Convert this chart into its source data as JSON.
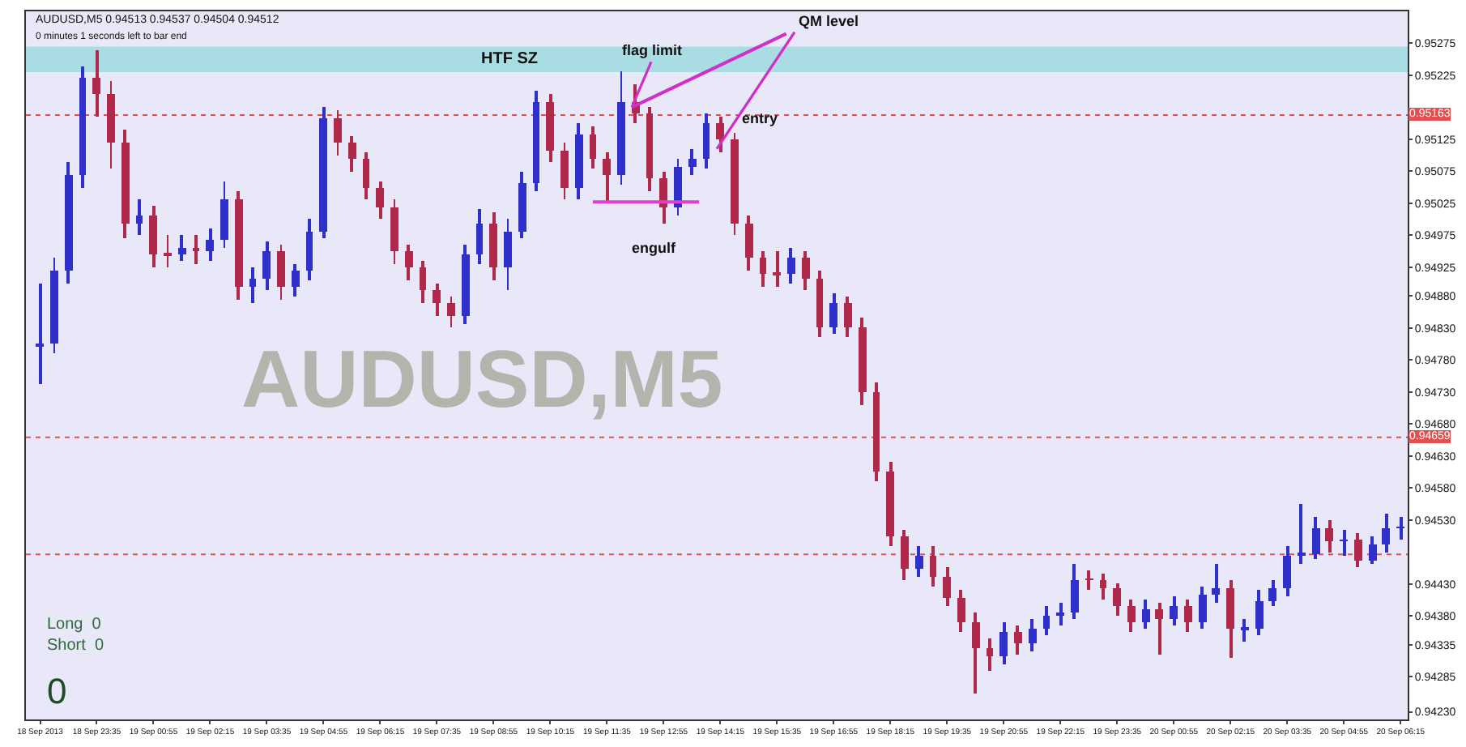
{
  "chart_data": {
    "type": "candlestick",
    "x": [
      "2013-09-18T22:15",
      "2013-09-18T22:35",
      "2013-09-18T22:55",
      "2013-09-18T23:15",
      "2013-09-18T23:35",
      "2013-09-18T23:55",
      "2013-09-19T00:15",
      "2013-09-19T00:35",
      "2013-09-19T00:55",
      "2013-09-19T01:15",
      "2013-09-19T01:35",
      "2013-09-19T01:55",
      "2013-09-19T02:15",
      "2013-09-19T02:35",
      "2013-09-19T02:55",
      "2013-09-19T03:15",
      "2013-09-19T03:35",
      "2013-09-19T03:55",
      "2013-09-19T04:15",
      "2013-09-19T04:35",
      "2013-09-19T04:55",
      "2013-09-19T05:15",
      "2013-09-19T05:35",
      "2013-09-19T05:55",
      "2013-09-19T06:15",
      "2013-09-19T06:35",
      "2013-09-19T06:55",
      "2013-09-19T07:15",
      "2013-09-19T07:35",
      "2013-09-19T07:55",
      "2013-09-19T08:15",
      "2013-09-19T08:35",
      "2013-09-19T08:55",
      "2013-09-19T09:15",
      "2013-09-19T09:35",
      "2013-09-19T09:55",
      "2013-09-19T10:15",
      "2013-09-19T10:35",
      "2013-09-19T10:55",
      "2013-09-19T11:15",
      "2013-09-19T11:35",
      "2013-09-19T11:55",
      "2013-09-19T12:15",
      "2013-09-19T12:35",
      "2013-09-19T12:55",
      "2013-09-19T13:15",
      "2013-09-19T13:35",
      "2013-09-19T13:55",
      "2013-09-19T14:15",
      "2013-09-19T14:35",
      "2013-09-19T14:55",
      "2013-09-19T15:15",
      "2013-09-19T15:35",
      "2013-09-19T15:55",
      "2013-09-19T16:15",
      "2013-09-19T16:35",
      "2013-09-19T16:55",
      "2013-09-19T17:15",
      "2013-09-19T17:35",
      "2013-09-19T17:55",
      "2013-09-19T18:15",
      "2013-09-19T18:35",
      "2013-09-19T18:55",
      "2013-09-19T19:15",
      "2013-09-19T19:35",
      "2013-09-19T19:55",
      "2013-09-19T20:15",
      "2013-09-19T20:35",
      "2013-09-19T20:55",
      "2013-09-19T21:15",
      "2013-09-19T21:35",
      "2013-09-19T21:55",
      "2013-09-19T22:15",
      "2013-09-19T22:35",
      "2013-09-19T22:55",
      "2013-09-19T23:15",
      "2013-09-19T23:35",
      "2013-09-19T23:55",
      "2013-09-20T00:15",
      "2013-09-20T00:35",
      "2013-09-20T00:55",
      "2013-09-20T01:15",
      "2013-09-20T01:35",
      "2013-09-20T01:55",
      "2013-09-20T02:15",
      "2013-09-20T02:35",
      "2013-09-20T02:55",
      "2013-09-20T03:15",
      "2013-09-20T03:35",
      "2013-09-20T03:55",
      "2013-09-20T04:15",
      "2013-09-20T04:35",
      "2013-09-20T04:55",
      "2013-09-20T05:15",
      "2013-09-20T05:35",
      "2013-09-20T05:55",
      "2013-09-20T06:15"
    ],
    "ohlc": [
      [
        0.948,
        0.949,
        0.94743,
        0.94806
      ],
      [
        0.94806,
        0.9494,
        0.9479,
        0.94919
      ],
      [
        0.94919,
        0.9509,
        0.949,
        0.95069
      ],
      [
        0.95069,
        0.9524,
        0.9505,
        0.9522
      ],
      [
        0.9522,
        0.95265,
        0.9516,
        0.95195
      ],
      [
        0.95195,
        0.95215,
        0.9508,
        0.95119
      ],
      [
        0.95119,
        0.9514,
        0.9497,
        0.94994
      ],
      [
        0.94994,
        0.9503,
        0.94975,
        0.95006
      ],
      [
        0.95006,
        0.9502,
        0.94925,
        0.94944
      ],
      [
        0.94944,
        0.94975,
        0.94925,
        0.94944
      ],
      [
        0.94944,
        0.94975,
        0.94935,
        0.94956
      ],
      [
        0.94956,
        0.94975,
        0.9493,
        0.94949
      ],
      [
        0.94949,
        0.94985,
        0.94935,
        0.94969
      ],
      [
        0.94969,
        0.9506,
        0.94955,
        0.95032
      ],
      [
        0.95032,
        0.95045,
        0.94875,
        0.94894
      ],
      [
        0.94894,
        0.94925,
        0.9487,
        0.94906
      ],
      [
        0.94906,
        0.94965,
        0.9489,
        0.94949
      ],
      [
        0.94949,
        0.9496,
        0.94875,
        0.94894
      ],
      [
        0.94894,
        0.9493,
        0.9488,
        0.94919
      ],
      [
        0.94919,
        0.95,
        0.94905,
        0.94981
      ],
      [
        0.94981,
        0.95175,
        0.9497,
        0.95157
      ],
      [
        0.95157,
        0.9517,
        0.951,
        0.95119
      ],
      [
        0.95119,
        0.9513,
        0.95075,
        0.95094
      ],
      [
        0.95094,
        0.95105,
        0.9503,
        0.95049
      ],
      [
        0.95049,
        0.9506,
        0.95,
        0.95019
      ],
      [
        0.95019,
        0.9503,
        0.9493,
        0.94949
      ],
      [
        0.94949,
        0.9496,
        0.94905,
        0.94924
      ],
      [
        0.94924,
        0.94935,
        0.9487,
        0.94889
      ],
      [
        0.94889,
        0.949,
        0.9485,
        0.94868
      ],
      [
        0.94868,
        0.9488,
        0.94831,
        0.94848
      ],
      [
        0.94848,
        0.9496,
        0.94835,
        0.94944
      ],
      [
        0.94944,
        0.95015,
        0.9493,
        0.94994
      ],
      [
        0.94994,
        0.9501,
        0.94905,
        0.94924
      ],
      [
        0.94924,
        0.95,
        0.9489,
        0.94981
      ],
      [
        0.94981,
        0.95075,
        0.9497,
        0.95057
      ],
      [
        0.95057,
        0.95202,
        0.95045,
        0.95182
      ],
      [
        0.95182,
        0.95195,
        0.9509,
        0.95107
      ],
      [
        0.95107,
        0.9512,
        0.9503,
        0.95049
      ],
      [
        0.95049,
        0.9515,
        0.9503,
        0.95132
      ],
      [
        0.95132,
        0.95145,
        0.9508,
        0.95094
      ],
      [
        0.95094,
        0.95105,
        0.95027,
        0.95069
      ],
      [
        0.95069,
        0.95232,
        0.95055,
        0.95182
      ],
      [
        0.95182,
        0.9521,
        0.9515,
        0.95165
      ],
      [
        0.95165,
        0.95175,
        0.95045,
        0.95064
      ],
      [
        0.95064,
        0.95075,
        0.94994,
        0.95019
      ],
      [
        0.95019,
        0.95095,
        0.95005,
        0.95082
      ],
      [
        0.95082,
        0.9511,
        0.9507,
        0.95094
      ],
      [
        0.95094,
        0.95165,
        0.9508,
        0.9515
      ],
      [
        0.9515,
        0.9516,
        0.95105,
        0.95124
      ],
      [
        0.95124,
        0.95135,
        0.94975,
        0.94994
      ],
      [
        0.94994,
        0.95005,
        0.9492,
        0.94939
      ],
      [
        0.94939,
        0.9495,
        0.94895,
        0.94914
      ],
      [
        0.94914,
        0.9495,
        0.94895,
        0.94914
      ],
      [
        0.94914,
        0.94955,
        0.949,
        0.94939
      ],
      [
        0.94939,
        0.9495,
        0.9489,
        0.94906
      ],
      [
        0.94906,
        0.9492,
        0.94815,
        0.94831
      ],
      [
        0.94831,
        0.94885,
        0.9482,
        0.94868
      ],
      [
        0.94868,
        0.9488,
        0.94815,
        0.94831
      ],
      [
        0.94831,
        0.94845,
        0.9471,
        0.9473
      ],
      [
        0.9473,
        0.94745,
        0.9459,
        0.94605
      ],
      [
        0.94605,
        0.9462,
        0.9449,
        0.94504
      ],
      [
        0.94504,
        0.94515,
        0.94435,
        0.94454
      ],
      [
        0.94454,
        0.9449,
        0.9444,
        0.94474
      ],
      [
        0.94474,
        0.9449,
        0.94425,
        0.94442
      ],
      [
        0.94442,
        0.94455,
        0.94395,
        0.94409
      ],
      [
        0.94409,
        0.9442,
        0.94355,
        0.94371
      ],
      [
        0.94371,
        0.94385,
        0.94258,
        0.94329
      ],
      [
        0.94329,
        0.94345,
        0.94295,
        0.94316
      ],
      [
        0.94316,
        0.9437,
        0.94305,
        0.94354
      ],
      [
        0.94354,
        0.94365,
        0.9432,
        0.94336
      ],
      [
        0.94336,
        0.94375,
        0.94325,
        0.94361
      ],
      [
        0.94361,
        0.94395,
        0.9435,
        0.94379
      ],
      [
        0.94379,
        0.944,
        0.94365,
        0.94386
      ],
      [
        0.94386,
        0.94462,
        0.94375,
        0.94437
      ],
      [
        0.94437,
        0.9445,
        0.9442,
        0.94437
      ],
      [
        0.94437,
        0.94445,
        0.94405,
        0.94422
      ],
      [
        0.94422,
        0.9443,
        0.9438,
        0.94396
      ],
      [
        0.94396,
        0.94405,
        0.94355,
        0.94371
      ],
      [
        0.94371,
        0.94405,
        0.9436,
        0.94391
      ],
      [
        0.94391,
        0.944,
        0.9432,
        0.94376
      ],
      [
        0.94376,
        0.9441,
        0.94365,
        0.94396
      ],
      [
        0.94396,
        0.94405,
        0.94355,
        0.94371
      ],
      [
        0.94371,
        0.94425,
        0.9436,
        0.94412
      ],
      [
        0.94412,
        0.9446,
        0.944,
        0.94422
      ],
      [
        0.94422,
        0.94435,
        0.94315,
        0.94359
      ],
      [
        0.94359,
        0.94375,
        0.9434,
        0.94361
      ],
      [
        0.94361,
        0.9442,
        0.9435,
        0.94404
      ],
      [
        0.94404,
        0.94435,
        0.94395,
        0.94422
      ],
      [
        0.94422,
        0.9449,
        0.9441,
        0.94474
      ],
      [
        0.94474,
        0.94555,
        0.9446,
        0.94477
      ],
      [
        0.94477,
        0.94535,
        0.9447,
        0.94517
      ],
      [
        0.94517,
        0.9453,
        0.9448,
        0.94497
      ],
      [
        0.94497,
        0.94515,
        0.94475,
        0.94499
      ],
      [
        0.94499,
        0.9451,
        0.94455,
        0.94467
      ],
      [
        0.94467,
        0.94505,
        0.9446,
        0.94492
      ],
      [
        0.94492,
        0.9454,
        0.9448,
        0.94517
      ],
      [
        0.94517,
        0.94535,
        0.945,
        0.94517
      ]
    ],
    "colors": [
      "#2f2fcc",
      "#2f2fcc",
      "#2f2fcc",
      "#2f2fcc",
      "#b0284a",
      "#b0284a",
      "#b0284a",
      "#2f2fcc",
      "#b0284a",
      "#b0284a",
      "#2f2fcc",
      "#b0284a",
      "#2f2fcc",
      "#2f2fcc",
      "#b0284a",
      "#2f2fcc",
      "#2f2fcc",
      "#b0284a",
      "#2f2fcc",
      "#2f2fcc",
      "#2f2fcc",
      "#b0284a",
      "#b0284a",
      "#b0284a",
      "#b0284a",
      "#b0284a",
      "#b0284a",
      "#b0284a",
      "#b0284a",
      "#b0284a",
      "#2f2fcc",
      "#2f2fcc",
      "#b0284a",
      "#2f2fcc",
      "#2f2fcc",
      "#2f2fcc",
      "#b0284a",
      "#b0284a",
      "#2f2fcc",
      "#b0284a",
      "#b0284a",
      "#2f2fcc",
      "#b0284a",
      "#b0284a",
      "#b0284a",
      "#2f2fcc",
      "#2f2fcc",
      "#2f2fcc",
      "#b0284a",
      "#b0284a",
      "#b0284a",
      "#b0284a",
      "#b0284a",
      "#2f2fcc",
      "#b0284a",
      "#b0284a",
      "#2f2fcc",
      "#b0284a",
      "#b0284a",
      "#b0284a",
      "#b0284a",
      "#b0284a",
      "#2f2fcc",
      "#b0284a",
      "#b0284a",
      "#b0284a",
      "#b0284a",
      "#b0284a",
      "#2f2fcc",
      "#b0284a",
      "#2f2fcc",
      "#2f2fcc",
      "#2f2fcc",
      "#2f2fcc",
      "#b0284a",
      "#b0284a",
      "#b0284a",
      "#b0284a",
      "#2f2fcc",
      "#b0284a",
      "#2f2fcc",
      "#b0284a",
      "#2f2fcc",
      "#2f2fcc",
      "#b0284a",
      "#2f2fcc",
      "#2f2fcc",
      "#2f2fcc",
      "#2f2fcc",
      "#2f2fcc",
      "#2f2fcc",
      "#b0284a",
      "#2f2fcc",
      "#b0284a",
      "#2f2fcc",
      "#2f2fcc",
      "#2f2fcc"
    ],
    "series": [
      {
        "type": "line",
        "color": "#e040c8",
        "x": [
          "2013-09-19T11:15",
          "2013-09-19T13:45"
        ],
        "values": [
          0.95027,
          0.95027
        ]
      },
      {
        "type": "line",
        "color": "#d030c8",
        "x": [
          "2013-09-19T12:10",
          "2013-09-19T15:48"
        ],
        "values": [
          0.95175,
          0.9529
        ]
      }
    ],
    "xlim": [
      "2013-09-18T21:55",
      "2013-09-20T06:25"
    ],
    "xticks": [
      {
        "value": "2013-09-18T22:15",
        "label": "18 Sep 2013"
      },
      {
        "value": "2013-09-18T23:35",
        "label": "18 Sep 23:35"
      },
      {
        "value": "2013-09-19T00:55",
        "label": "19 Sep 00:55"
      },
      {
        "value": "2013-09-19T02:15",
        "label": "19 Sep 02:15"
      },
      {
        "value": "2013-09-19T03:35",
        "label": "19 Sep 03:35"
      },
      {
        "value": "2013-09-19T04:55",
        "label": "19 Sep 04:55"
      },
      {
        "value": "2013-09-19T06:15",
        "label": "19 Sep 06:15"
      },
      {
        "value": "2013-09-19T07:35",
        "label": "19 Sep 07:35"
      },
      {
        "value": "2013-09-19T08:55",
        "label": "19 Sep 08:55"
      },
      {
        "value": "2013-09-19T10:15",
        "label": "19 Sep 10:15"
      },
      {
        "value": "2013-09-19T11:35",
        "label": "19 Sep 11:35"
      },
      {
        "value": "2013-09-19T12:55",
        "label": "19 Sep 12:55"
      },
      {
        "value": "2013-09-19T14:15",
        "label": "19 Sep 14:15"
      },
      {
        "value": "2013-09-19T15:35",
        "label": "19 Sep 15:35"
      },
      {
        "value": "2013-09-19T16:55",
        "label": "19 Sep 16:55"
      },
      {
        "value": "2013-09-19T18:15",
        "label": "19 Sep 18:15"
      },
      {
        "value": "2013-09-19T19:35",
        "label": "19 Sep 19:35"
      },
      {
        "value": "2013-09-19T20:55",
        "label": "19 Sep 20:55"
      },
      {
        "value": "2013-09-19T22:15",
        "label": "19 Sep 22:15"
      },
      {
        "value": "2013-09-19T23:35",
        "label": "19 Sep 23:35"
      },
      {
        "value": "2013-09-20T00:55",
        "label": "20 Sep 00:55"
      },
      {
        "value": "2013-09-20T02:15",
        "label": "20 Sep 02:15"
      },
      {
        "value": "2013-09-20T03:35",
        "label": "20 Sep 03:35"
      },
      {
        "value": "2013-09-20T04:55",
        "label": "20 Sep 04:55"
      },
      {
        "value": "2013-09-20T06:15",
        "label": "20 Sep 06:15"
      }
    ],
    "ylim": [
      0.94218,
      0.95325
    ],
    "yticks": [
      {
        "value": 0.95275,
        "label": "0.95275"
      },
      {
        "value": 0.95225,
        "label": "0.95225"
      },
      {
        "value": 0.95125,
        "label": "0.95125"
      },
      {
        "value": 0.95075,
        "label": "0.95075"
      },
      {
        "value": 0.95025,
        "label": "0.95025"
      },
      {
        "value": 0.94975,
        "label": "0.94975"
      },
      {
        "value": 0.94925,
        "label": "0.94925"
      },
      {
        "value": 0.9488,
        "label": "0.94880"
      },
      {
        "value": 0.9483,
        "label": "0.94830"
      },
      {
        "value": 0.9478,
        "label": "0.94780"
      },
      {
        "value": 0.9473,
        "label": "0.94730"
      },
      {
        "value": 0.9468,
        "label": "0.94680"
      },
      {
        "value": 0.9463,
        "label": "0.94630"
      },
      {
        "value": 0.9458,
        "label": "0.94580"
      },
      {
        "value": 0.9453,
        "label": "0.94530"
      },
      {
        "value": 0.9443,
        "label": "0.94430"
      },
      {
        "value": 0.9438,
        "label": "0.94380"
      },
      {
        "value": 0.94335,
        "label": "0.94335"
      },
      {
        "value": 0.94285,
        "label": "0.94285"
      },
      {
        "value": 0.9423,
        "label": "0.94230"
      }
    ],
    "ref_lines": [
      {
        "axis": "y",
        "value": 0.95163,
        "label": "0.95163",
        "color": "#e05050",
        "line_style": "dotted"
      },
      {
        "axis": "y",
        "value": 0.94659,
        "label": "0.94659",
        "color": "#e05050",
        "line_style": "dotted"
      },
      {
        "axis": "y",
        "value": 0.94476,
        "color": "#e05050",
        "line_style": "dotted"
      }
    ],
    "bands": [
      {
        "axis": "y",
        "from": 0.9523,
        "to": 0.9527,
        "label": "HTF SZ",
        "color": "#a9dde3"
      }
    ],
    "annotations": [
      "AUDUSD,M5 0.94513 0.94537 0.94504 0.94512",
      "0 minutes 1 seconds left to bar end",
      "AUDUSD,M5",
      {
        "text": "flag limit",
        "x": "2013-09-19T12:10",
        "y": 0.95175
      },
      {
        "text": "QM level",
        "x": "2013-09-19T14:10",
        "y": 0.9511
      },
      {
        "text": "entry",
        "x": "2013-09-19T14:40",
        "y": 0.95157
      },
      "engulf",
      "Long  0",
      "Short  0",
      "0"
    ],
    "grid": false
  }
}
